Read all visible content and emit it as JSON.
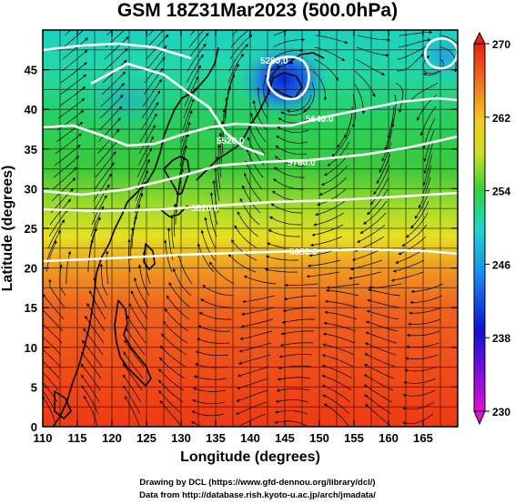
{
  "title": "GSM 18Z31Mar2023 (500.0hPa)",
  "axes": {
    "xlabel": "Longitude (degrees)",
    "ylabel": "Latitude  (degrees)",
    "x_ticks": [
      "110",
      "115",
      "120",
      "125",
      "130",
      "135",
      "140",
      "145",
      "150",
      "155",
      "160",
      "165"
    ],
    "y_ticks": [
      "0",
      "5",
      "10",
      "15",
      "20",
      "25",
      "30",
      "35",
      "40",
      "45"
    ],
    "xlim": [
      110,
      170
    ],
    "ylim": [
      0,
      50
    ]
  },
  "colorbar": {
    "labels": [
      "230",
      "238",
      "246",
      "254",
      "262",
      "270"
    ],
    "range": [
      230,
      270
    ]
  },
  "contours": {
    "labels": [
      "5880.0",
      "5820.0",
      "5760.0",
      "5640.0",
      "5520.0",
      "5280.0"
    ]
  },
  "credits": {
    "line1": "Drawing by DCL (https://www.gfd-dennou.org/library/dcl/)",
    "line2": "Data from http://database.rish.kyoto-u.ac.jp/arch/jmadata/"
  }
}
